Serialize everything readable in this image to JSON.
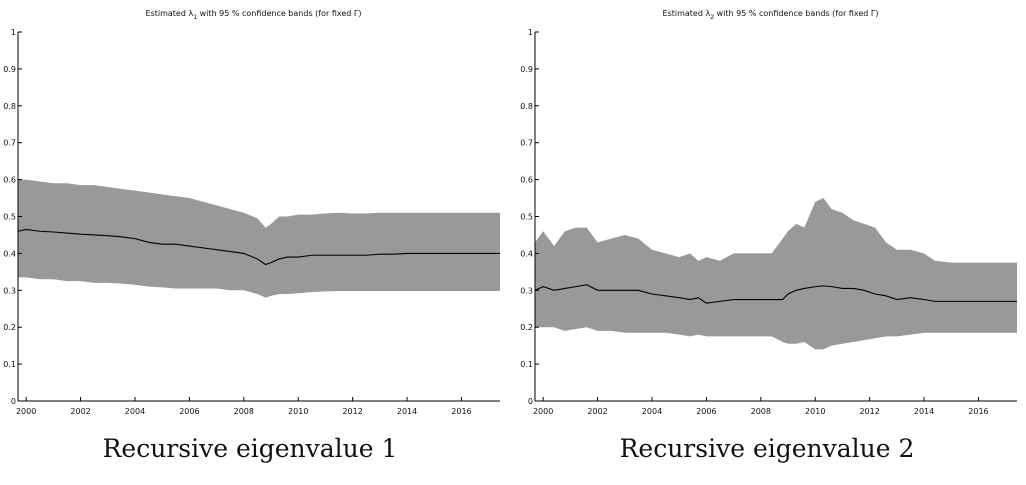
{
  "chart_data": [
    {
      "type": "area",
      "title_text": "Estimated λ",
      "title_sub": "1",
      "title_rest": " with 95 % confidence bands (for fixed Γ)",
      "caption": "Recursive eigenvalue 1",
      "xlim": [
        1999.7,
        2017.6
      ],
      "ylim": [
        0,
        1
      ],
      "xticks": [
        "2000",
        "2002",
        "2004",
        "2006",
        "2008",
        "2010",
        "2012",
        "2014",
        "2016"
      ],
      "yticks": [
        "0",
        "0.1",
        "0.2",
        "0.3",
        "0.4",
        "0.5",
        "0.6",
        "0.7",
        "0.8",
        "0.9",
        "1"
      ],
      "colors": {
        "band": "#999999",
        "line": "#000000"
      },
      "x": [
        1999.7,
        2000.0,
        2000.5,
        2001.0,
        2001.5,
        2002.0,
        2002.5,
        2003.0,
        2003.5,
        2004.0,
        2004.5,
        2005.0,
        2005.5,
        2006.0,
        2006.5,
        2007.0,
        2007.5,
        2008.0,
        2008.5,
        2008.8,
        2009.0,
        2009.3,
        2009.6,
        2010.0,
        2010.5,
        2011.0,
        2011.5,
        2012.0,
        2012.5,
        2013.0,
        2013.5,
        2014.0,
        2014.5,
        2015.0,
        2015.5,
        2016.0,
        2016.5,
        2017.0,
        2017.6
      ],
      "series": [
        {
          "values": [
            0.46,
            0.465,
            0.46,
            0.458,
            0.455,
            0.452,
            0.45,
            0.448,
            0.445,
            0.44,
            0.43,
            0.425,
            0.425,
            0.42,
            0.415,
            0.41,
            0.405,
            0.4,
            0.385,
            0.37,
            0.375,
            0.385,
            0.39,
            0.39,
            0.395,
            0.395,
            0.395,
            0.395,
            0.395,
            0.398,
            0.398,
            0.4,
            0.4,
            0.4,
            0.4,
            0.4,
            0.4,
            0.4,
            0.4
          ]
        },
        {
          "values": [
            0.6,
            0.6,
            0.595,
            0.59,
            0.59,
            0.585,
            0.585,
            0.58,
            0.575,
            0.57,
            0.565,
            0.56,
            0.555,
            0.55,
            0.54,
            0.53,
            0.52,
            0.51,
            0.495,
            0.47,
            0.48,
            0.5,
            0.5,
            0.505,
            0.505,
            0.508,
            0.51,
            0.508,
            0.508,
            0.51,
            0.51,
            0.51,
            0.51,
            0.51,
            0.51,
            0.51,
            0.51,
            0.51,
            0.51
          ]
        },
        {
          "values": [
            0.335,
            0.335,
            0.33,
            0.33,
            0.325,
            0.325,
            0.32,
            0.32,
            0.318,
            0.315,
            0.31,
            0.308,
            0.305,
            0.305,
            0.305,
            0.305,
            0.3,
            0.3,
            0.29,
            0.28,
            0.285,
            0.29,
            0.29,
            0.292,
            0.295,
            0.297,
            0.298,
            0.298,
            0.298,
            0.298,
            0.298,
            0.298,
            0.298,
            0.298,
            0.298,
            0.298,
            0.298,
            0.298,
            0.298
          ]
        }
      ]
    },
    {
      "type": "area",
      "title_text": "Estimated λ",
      "title_sub": "2",
      "title_rest": " with 95 % confidence bands (for fixed Γ)",
      "caption": "Recursive eigenvalue 2",
      "xlim": [
        1999.7,
        2017.6
      ],
      "ylim": [
        0,
        1
      ],
      "xticks": [
        "2000",
        "2002",
        "2004",
        "2006",
        "2008",
        "2010",
        "2012",
        "2014",
        "2016"
      ],
      "yticks": [
        "0",
        "0.1",
        "0.2",
        "0.3",
        "0.4",
        "0.5",
        "0.6",
        "0.7",
        "0.8",
        "0.9",
        "1"
      ],
      "colors": {
        "band": "#999999",
        "line": "#000000"
      },
      "x": [
        1999.7,
        2000.0,
        2000.4,
        2000.8,
        2001.2,
        2001.6,
        2002.0,
        2002.5,
        2003.0,
        2003.5,
        2004.0,
        2004.5,
        2005.0,
        2005.4,
        2005.7,
        2006.0,
        2006.5,
        2007.0,
        2007.5,
        2008.0,
        2008.4,
        2008.8,
        2009.0,
        2009.3,
        2009.6,
        2010.0,
        2010.3,
        2010.6,
        2011.0,
        2011.4,
        2011.8,
        2012.2,
        2012.6,
        2013.0,
        2013.5,
        2014.0,
        2014.4,
        2015.0,
        2015.5,
        2016.0,
        2016.5,
        2017.0,
        2017.6
      ],
      "series": [
        {
          "values": [
            0.3,
            0.31,
            0.3,
            0.305,
            0.31,
            0.315,
            0.3,
            0.3,
            0.3,
            0.3,
            0.29,
            0.285,
            0.28,
            0.275,
            0.28,
            0.265,
            0.27,
            0.275,
            0.275,
            0.275,
            0.275,
            0.275,
            0.29,
            0.3,
            0.305,
            0.31,
            0.312,
            0.31,
            0.305,
            0.305,
            0.3,
            0.29,
            0.285,
            0.275,
            0.28,
            0.275,
            0.27,
            0.27,
            0.27,
            0.27,
            0.27,
            0.27,
            0.27
          ]
        },
        {
          "values": [
            0.43,
            0.46,
            0.42,
            0.46,
            0.47,
            0.47,
            0.43,
            0.44,
            0.45,
            0.44,
            0.41,
            0.4,
            0.39,
            0.4,
            0.38,
            0.39,
            0.38,
            0.4,
            0.4,
            0.4,
            0.4,
            0.44,
            0.46,
            0.48,
            0.47,
            0.54,
            0.55,
            0.52,
            0.51,
            0.49,
            0.48,
            0.47,
            0.43,
            0.41,
            0.41,
            0.4,
            0.38,
            0.375,
            0.375,
            0.375,
            0.375,
            0.375,
            0.375
          ]
        },
        {
          "values": [
            0.2,
            0.2,
            0.2,
            0.19,
            0.195,
            0.2,
            0.19,
            0.19,
            0.185,
            0.185,
            0.185,
            0.185,
            0.18,
            0.175,
            0.18,
            0.175,
            0.175,
            0.175,
            0.175,
            0.175,
            0.175,
            0.16,
            0.155,
            0.155,
            0.16,
            0.14,
            0.14,
            0.15,
            0.155,
            0.16,
            0.165,
            0.17,
            0.175,
            0.175,
            0.18,
            0.185,
            0.185,
            0.185,
            0.185,
            0.185,
            0.185,
            0.185,
            0.185
          ]
        }
      ]
    }
  ]
}
